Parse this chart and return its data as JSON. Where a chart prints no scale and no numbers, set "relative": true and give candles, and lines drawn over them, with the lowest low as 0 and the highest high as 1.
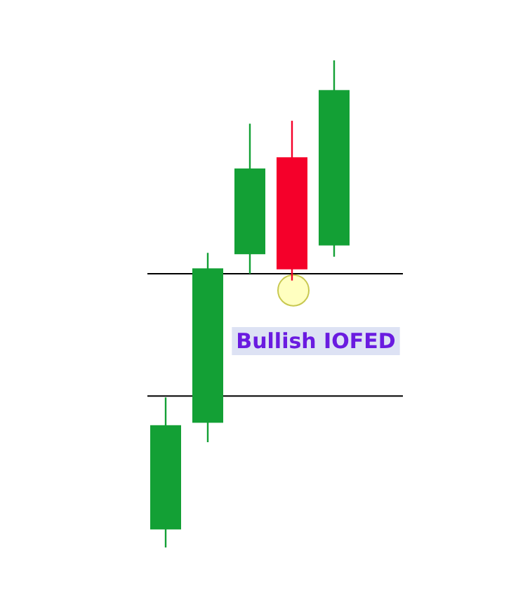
{
  "chart_data": {
    "type": "candlestick",
    "relative": true,
    "categories": [
      null,
      null,
      null,
      null,
      null
    ],
    "ohlc": [
      [
        0.037,
        0.308,
        0,
        0.251
      ],
      [
        0.256,
        0.605,
        0.216,
        0.573
      ],
      [
        0.602,
        0.87,
        0.562,
        0.778
      ],
      [
        0.801,
        0.876,
        0.548,
        0.571
      ],
      [
        0.62,
        1,
        0.597,
        0.939
      ]
    ],
    "colors": [
      "#13a035",
      "#13a035",
      "#13a035",
      "#f5002a",
      "#13a035"
    ],
    "ref_lines": [
      {
        "axis": "y",
        "value": 0.562,
        "color": "#000000"
      },
      {
        "axis": "y",
        "value": 0.311,
        "color": "#000000"
      }
    ],
    "annotations": [
      "Bullish IOFED"
    ]
  }
}
